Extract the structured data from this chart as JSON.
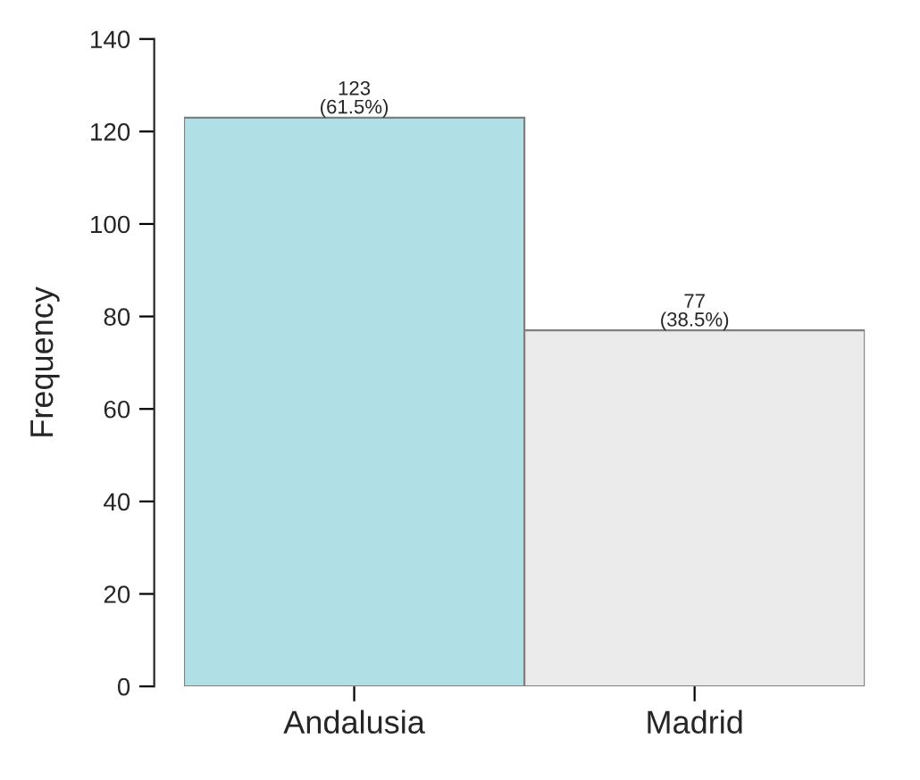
{
  "chart_data": {
    "type": "bar",
    "ylabel": "Frequency",
    "categories": [
      "Andalusia",
      "Madrid"
    ],
    "values": [
      123,
      77
    ],
    "colors": [
      "#b0dfe5",
      "#ebebeb"
    ],
    "value_labels": [
      "123\n(61.5%)",
      "77\n(38.5%)"
    ],
    "ylim": [
      0,
      140
    ],
    "yticks": [
      0,
      20,
      40,
      60,
      80,
      100,
      120,
      140
    ],
    "grid": false,
    "legend": false
  }
}
